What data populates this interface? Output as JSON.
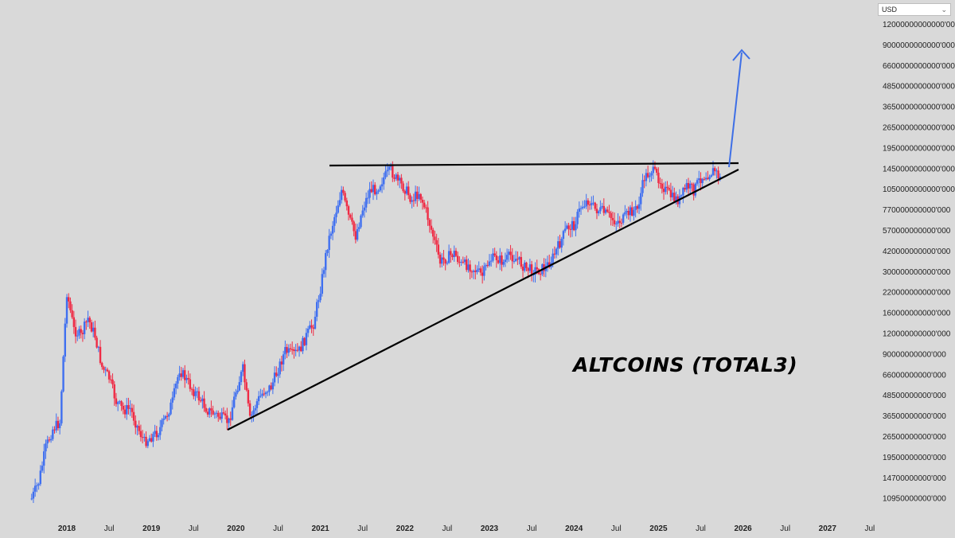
{
  "currency": {
    "label": "USD"
  },
  "annotation": {
    "text": "ALTCOINS (TOTAL3)"
  },
  "colors": {
    "up": "#3f6ff0",
    "down": "#ef2b45",
    "trendline": "#000000",
    "projection": "#3e6fe6",
    "background": "#d9d9d9"
  },
  "price_axis": {
    "labels": [
      "12000000000000'000",
      "9000000000000'000",
      "6600000000000'000",
      "4850000000000'000",
      "3650000000000'000",
      "2650000000000'000",
      "1950000000000'000",
      "1450000000000'000",
      "1050000000000'000",
      "770000000000'000",
      "570000000000'000",
      "420000000000'000",
      "300000000000'000",
      "220000000000'000",
      "160000000000'000",
      "120000000000'000",
      "90000000000'000",
      "66000000000'000",
      "48500000000'000",
      "36500000000'000",
      "26500000000'000",
      "19500000000'000",
      "14700000000'000",
      "10950000000'000"
    ]
  },
  "time_axis": {
    "labels": [
      "2018",
      "Jul",
      "2019",
      "Jul",
      "2020",
      "Jul",
      "2021",
      "Jul",
      "2022",
      "Jul",
      "2023",
      "Jul",
      "2024",
      "Jul",
      "2025",
      "Jul",
      "2026",
      "Jul",
      "2027",
      "Jul"
    ]
  },
  "chart_data": {
    "type": "candlestick",
    "title": "ALTCOINS (TOTAL3)",
    "y_scale": "log",
    "currency": "USD",
    "series": [
      {
        "x": [
          "2017-08",
          "2017-09",
          "2017-10",
          "2017-11",
          "2017-12",
          "2018-01",
          "2018-02",
          "2018-03",
          "2018-04",
          "2018-05",
          "2018-06",
          "2018-07",
          "2018-08",
          "2018-09",
          "2018-10",
          "2018-11",
          "2018-12",
          "2019-01",
          "2019-02",
          "2019-03",
          "2019-04",
          "2019-05",
          "2019-06",
          "2019-07",
          "2019-08",
          "2019-09",
          "2019-10",
          "2019-11",
          "2019-12",
          "2020-01",
          "2020-02",
          "2020-03",
          "2020-04",
          "2020-05",
          "2020-06",
          "2020-07",
          "2020-08",
          "2020-09",
          "2020-10",
          "2020-11",
          "2020-12",
          "2021-01",
          "2021-02",
          "2021-03",
          "2021-04",
          "2021-05",
          "2021-06",
          "2021-07",
          "2021-08",
          "2021-09",
          "2021-10",
          "2021-11",
          "2021-12",
          "2022-01",
          "2022-02",
          "2022-03",
          "2022-04",
          "2022-05",
          "2022-06",
          "2022-07",
          "2022-08",
          "2022-09",
          "2022-10",
          "2022-11",
          "2022-12",
          "2023-01",
          "2023-02",
          "2023-03",
          "2023-04",
          "2023-05",
          "2023-06",
          "2023-07",
          "2023-08",
          "2023-09",
          "2023-10",
          "2023-11",
          "2023-12",
          "2024-01",
          "2024-02",
          "2024-03",
          "2024-04",
          "2024-05",
          "2024-06",
          "2024-07",
          "2024-08",
          "2024-09",
          "2024-10",
          "2024-11",
          "2024-12",
          "2025-01",
          "2025-02",
          "2025-03",
          "2025-04",
          "2025-05",
          "2025-06",
          "2025-07",
          "2025-08",
          "2025-09",
          "2025-10"
        ],
        "y": [
          12000000000,
          15000000000,
          24000000000,
          31000000000,
          34000000000,
          200000000000,
          120000000000,
          110000000000,
          140000000000,
          110000000000,
          72000000000,
          62000000000,
          45000000000,
          40000000000,
          41000000000,
          32000000000,
          26000000000,
          28000000000,
          30000000000,
          36000000000,
          45000000000,
          70000000000,
          60000000000,
          52000000000,
          46000000000,
          40000000000,
          38000000000,
          36000000000,
          34000000000,
          52000000000,
          70000000000,
          35000000000,
          45000000000,
          52000000000,
          55000000000,
          70000000000,
          90000000000,
          85000000000,
          90000000000,
          110000000000,
          130000000000,
          210000000000,
          380000000000,
          560000000000,
          800000000000,
          560000000000,
          430000000000,
          620000000000,
          800000000000,
          820000000000,
          950000000000,
          1050000000000,
          900000000000,
          820000000000,
          700000000000,
          780000000000,
          600000000000,
          430000000000,
          300000000000,
          320000000000,
          340000000000,
          290000000000,
          290000000000,
          270000000000,
          250000000000,
          310000000000,
          320000000000,
          300000000000,
          330000000000,
          310000000000,
          280000000000,
          270000000000,
          270000000000,
          280000000000,
          320000000000,
          390000000000,
          480000000000,
          500000000000,
          640000000000,
          700000000000,
          620000000000,
          600000000000,
          560000000000,
          520000000000,
          540000000000,
          600000000000,
          620000000000,
          950000000000,
          1050000000000,
          950000000000,
          800000000000,
          720000000000,
          700000000000,
          850000000000,
          800000000000,
          950000000000,
          1000000000000,
          1050000000000,
          900000000000
        ]
      }
    ],
    "annotations": [
      "resistance line ~1.1T",
      "rising support trendline",
      "upward projection arrow"
    ]
  }
}
